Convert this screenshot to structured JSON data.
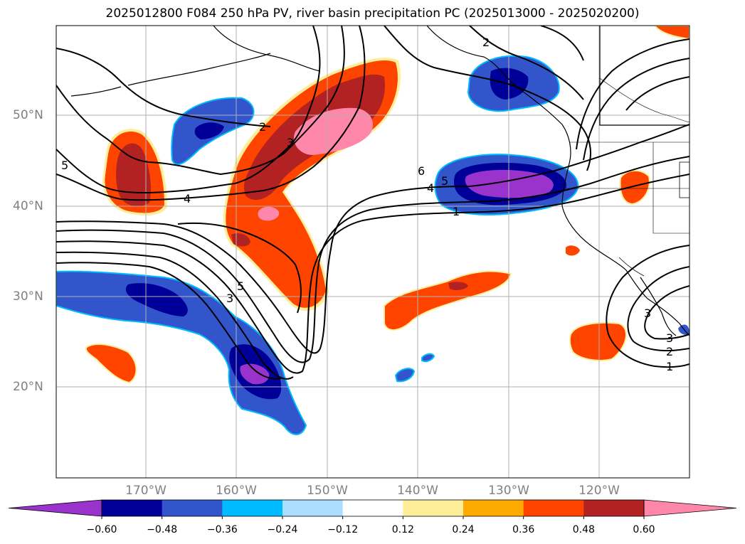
{
  "title": "2025012800 F084 250 hPa PV, river basin precipitation PC (2025013000 - 2025020200)",
  "map": {
    "lon_labels": [
      "170°W",
      "160°W",
      "150°W",
      "140°W",
      "130°W",
      "120°W"
    ],
    "lat_labels": [
      "50°N",
      "40°N",
      "30°N",
      "20°N"
    ],
    "gridlines": true,
    "land_outline_color": "#000000",
    "pv_contour_color": "#000000",
    "pv_contour_labels": [
      "1",
      "2",
      "3",
      "4",
      "5",
      "6",
      "2",
      "3",
      "5",
      "4",
      "5",
      "3",
      "1",
      "2",
      "3"
    ]
  },
  "colorbar": {
    "colors": [
      "#9933cc",
      "#000099",
      "#3355cc",
      "#00bbff",
      "#aaddff",
      "#ffffff",
      "#ffee99",
      "#ffaa00",
      "#ff4400",
      "#b22222",
      "#ff88aa"
    ],
    "tick_labels": [
      "−0.60",
      "−0.48",
      "−0.36",
      "−0.24",
      "−0.12",
      "0.12",
      "0.24",
      "0.36",
      "0.48",
      "0.60"
    ],
    "extend": "both"
  }
}
